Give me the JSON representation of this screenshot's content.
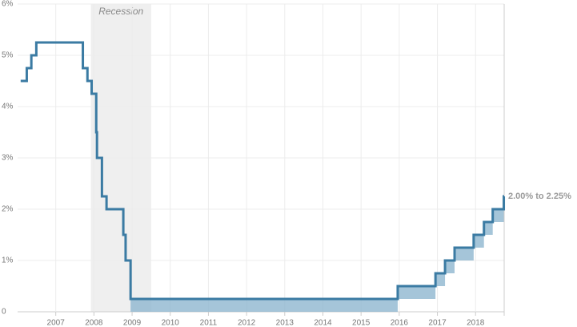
{
  "chart_data": {
    "type": "step",
    "x": [
      2006.08,
      2006.24,
      2006.36,
      2006.49,
      2007.71,
      2007.83,
      2007.94,
      2008.06,
      2008.08,
      2008.21,
      2008.33,
      2008.77,
      2008.83,
      2008.96,
      2015.96,
      2016.95,
      2017.2,
      2017.45,
      2017.95,
      2018.22,
      2018.45,
      2018.74
    ],
    "series": [
      {
        "color": "#3b7ba3",
        "values": [
          4.5,
          4.75,
          5.0,
          5.25,
          4.75,
          4.5,
          4.25,
          3.5,
          3.0,
          2.25,
          2.0,
          1.5,
          1.0,
          0.25,
          0.5,
          0.75,
          1.0,
          1.25,
          1.5,
          1.75,
          2.0,
          2.25
        ]
      },
      {
        "color": "#8fb6cf",
        "values": [
          null,
          null,
          null,
          null,
          null,
          null,
          null,
          null,
          null,
          null,
          null,
          null,
          null,
          0,
          0.25,
          0.5,
          0.75,
          1.0,
          1.25,
          1.5,
          1.75,
          2.0
        ]
      }
    ],
    "xlim": [
      2006,
      2018.75
    ],
    "xticks": [
      2007,
      2008,
      2009,
      2010,
      2011,
      2012,
      2013,
      2014,
      2015,
      2016,
      2017,
      2018
    ],
    "ylim": [
      0,
      6
    ],
    "yticks": [
      0,
      {
        "value": 1,
        "label": "1%"
      },
      {
        "value": 2,
        "label": "2%"
      },
      {
        "value": 3,
        "label": "3%"
      },
      {
        "value": 4,
        "label": "4%"
      },
      {
        "value": 5,
        "label": "5%"
      },
      {
        "value": 6,
        "label": "6%"
      }
    ],
    "grid": true,
    "recession": {
      "label": "Recession",
      "start": 2007.92,
      "end": 2009.5
    },
    "annotation": "2.00% to 2.25%"
  }
}
